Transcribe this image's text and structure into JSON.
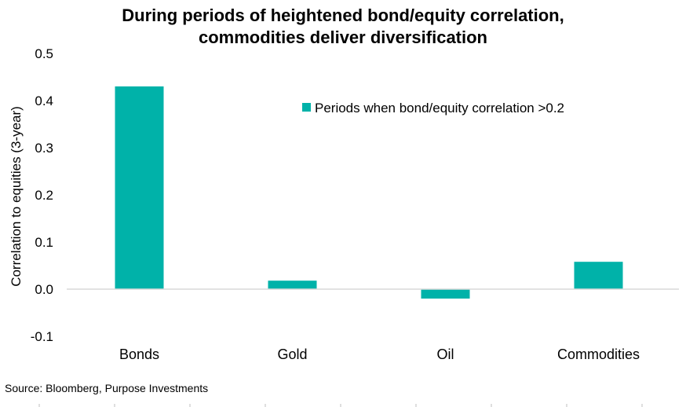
{
  "chart_data": {
    "type": "bar",
    "title_lines": [
      "During periods of heightened bond/equity correlation,",
      "commodities deliver diversification"
    ],
    "categories": [
      "Bonds",
      "Gold",
      "Oil",
      "Commodities"
    ],
    "series": [
      {
        "name": "Periods when bond/equity correlation >0.2",
        "values": [
          0.43,
          0.018,
          -0.02,
          0.058
        ],
        "color": "#00b2a9"
      }
    ],
    "ylabel": "Correlation to equities (3-year)",
    "xlabel": "",
    "ylim": [
      -0.1,
      0.5
    ],
    "yticks": [
      -0.1,
      0.0,
      0.1,
      0.2,
      0.3,
      0.4,
      0.5
    ],
    "ytick_labels": [
      "-0.1",
      "0.0",
      "0.1",
      "0.2",
      "0.3",
      "0.4",
      "0.5"
    ],
    "grid": false,
    "legend_position": "top-right"
  },
  "source": "Source: Bloomberg, Purpose Investments",
  "colors": {
    "bar": "#00b2a9",
    "axis": "#d9d9d9"
  }
}
